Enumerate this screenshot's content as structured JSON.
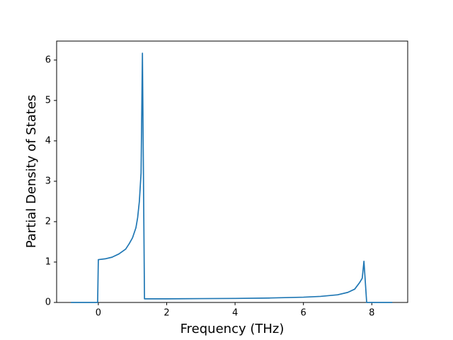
{
  "chart_data": {
    "type": "line",
    "xlabel": "Frequency (THz)",
    "ylabel": "Partial Density of States",
    "x": [
      -0.8,
      -0.02,
      0.0,
      0.2,
      0.4,
      0.6,
      0.8,
      0.9,
      1.0,
      1.1,
      1.15,
      1.2,
      1.25,
      1.29,
      1.35,
      2,
      3,
      4,
      5,
      6,
      6.5,
      7,
      7.3,
      7.5,
      7.65,
      7.72,
      7.77,
      7.85,
      8.6
    ],
    "values": [
      0,
      0,
      1.06,
      1.08,
      1.12,
      1.2,
      1.32,
      1.45,
      1.6,
      1.85,
      2.1,
      2.5,
      3.2,
      6.17,
      0.09,
      0.09,
      0.095,
      0.1,
      0.11,
      0.13,
      0.15,
      0.19,
      0.25,
      0.33,
      0.5,
      0.6,
      1.02,
      0,
      0
    ],
    "color": "#1f77b4",
    "xlim": [
      -1.22,
      9.05
    ],
    "ylim": [
      0,
      6.47
    ],
    "xticks": [
      0,
      2,
      4,
      6,
      8
    ],
    "yticks": [
      0,
      1,
      2,
      3,
      4,
      5,
      6
    ]
  }
}
